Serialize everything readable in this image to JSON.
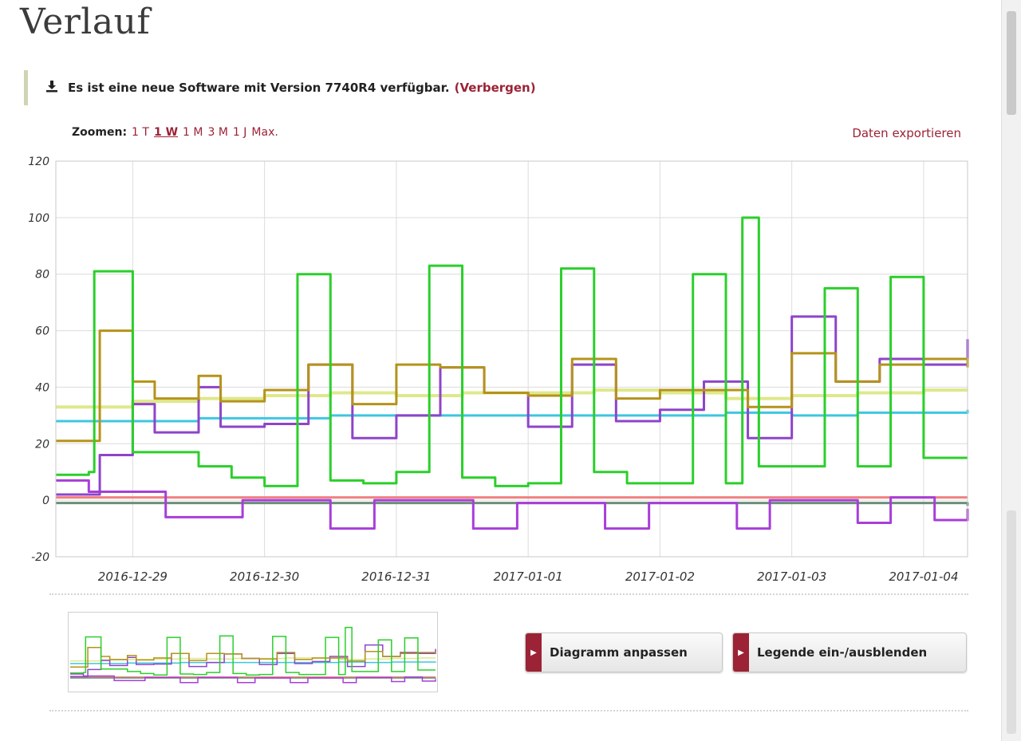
{
  "page": {
    "title": "Verlauf"
  },
  "notice": {
    "icon": "download-icon",
    "text": "Es ist eine neue Software mit Version 7740R4 verfügbar.",
    "hide_label": "(Verbergen)"
  },
  "zoom": {
    "label": "Zoomen:",
    "options": [
      "1 T",
      "1 W",
      "1 M",
      "3 M",
      "1 J",
      "Max."
    ],
    "active": "1 W"
  },
  "export": {
    "label": "Daten exportieren"
  },
  "buttons": {
    "adjust": "Diagramm anpassen",
    "legend": "Legende ein-/ausblenden"
  },
  "chart_data": {
    "type": "line",
    "x_start": "2016-12-28T10:00",
    "x_end": "2017-01-04T08:00",
    "x_ticks": [
      "2016-12-29",
      "2016-12-30",
      "2016-12-31",
      "2017-01-01",
      "2017-01-02",
      "2017-01-03",
      "2017-01-04"
    ],
    "ylim": [
      -20,
      120
    ],
    "y_ticks": [
      -20,
      0,
      20,
      40,
      60,
      80,
      100,
      120
    ],
    "grid": true,
    "legend": "hidden",
    "series": [
      {
        "color": "#dfe88c",
        "x": [
          "2016-12-28T10:00",
          "2016-12-29T00:00",
          "2016-12-29T12:00",
          "2016-12-30T00:00",
          "2016-12-30T12:00",
          "2016-12-31T00:00",
          "2016-12-31T12:00",
          "2017-01-01T00:00",
          "2017-01-01T12:00",
          "2017-01-02T00:00",
          "2017-01-02T12:00",
          "2017-01-03T00:00",
          "2017-01-03T12:00",
          "2017-01-04T00:00",
          "2017-01-04T08:00"
        ],
        "y": [
          33,
          35,
          36,
          37,
          38,
          37,
          38,
          38,
          39,
          38,
          36,
          37,
          38,
          39,
          39
        ]
      },
      {
        "color": "#3ec6e0",
        "x": [
          "2016-12-28T10:00",
          "2016-12-29T00:00",
          "2016-12-29T12:00",
          "2016-12-30T00:00",
          "2016-12-30T12:00",
          "2016-12-31T00:00",
          "2016-12-31T12:00",
          "2017-01-01T00:00",
          "2017-01-01T12:00",
          "2017-01-02T00:00",
          "2017-01-02T12:00",
          "2017-01-03T00:00",
          "2017-01-03T12:00",
          "2017-01-04T00:00",
          "2017-01-04T08:00"
        ],
        "y": [
          28,
          28,
          29,
          29,
          30,
          30,
          30,
          30,
          30,
          30,
          31,
          30,
          31,
          31,
          32
        ]
      },
      {
        "color": "#f08080",
        "x": [
          "2016-12-28T10:00",
          "2017-01-04T08:00"
        ],
        "y": [
          1,
          1
        ]
      },
      {
        "color": "#6a8f7a",
        "x": [
          "2016-12-28T10:00",
          "2016-12-30T00:00",
          "2017-01-01T00:00",
          "2017-01-03T00:00",
          "2017-01-04T08:00"
        ],
        "y": [
          -1,
          -1,
          -1,
          -1,
          -2
        ]
      },
      {
        "color": "#a83ed8",
        "x": [
          "2016-12-28T10:00",
          "2016-12-28T16:00",
          "2016-12-29T06:00",
          "2016-12-29T20:00",
          "2016-12-30T12:00",
          "2016-12-30T20:00",
          "2016-12-31T14:00",
          "2016-12-31T22:00",
          "2017-01-01T14:00",
          "2017-01-01T22:00",
          "2017-01-02T14:00",
          "2017-01-02T20:00",
          "2017-01-03T12:00",
          "2017-01-03T18:00",
          "2017-01-04T02:00",
          "2017-01-04T08:00"
        ],
        "y": [
          7,
          3,
          -6,
          0,
          -10,
          0,
          -10,
          -1,
          -10,
          -1,
          -10,
          0,
          -8,
          1,
          -7,
          -3
        ]
      },
      {
        "color": "#8e44c9",
        "x": [
          "2016-12-28T10:00",
          "2016-12-28T18:00",
          "2016-12-29T00:00",
          "2016-12-29T04:00",
          "2016-12-29T12:00",
          "2016-12-29T16:00",
          "2016-12-30T00:00",
          "2016-12-30T08:00",
          "2016-12-30T16:00",
          "2016-12-31T00:00",
          "2016-12-31T08:00",
          "2016-12-31T16:00",
          "2017-01-01T00:00",
          "2017-01-01T08:00",
          "2017-01-01T16:00",
          "2017-01-02T00:00",
          "2017-01-02T08:00",
          "2017-01-02T16:00",
          "2017-01-03T00:00",
          "2017-01-03T08:00",
          "2017-01-03T16:00",
          "2017-01-04T00:00",
          "2017-01-04T08:00"
        ],
        "y": [
          2,
          16,
          34,
          24,
          40,
          26,
          27,
          48,
          22,
          30,
          47,
          38,
          26,
          48,
          28,
          32,
          42,
          22,
          65,
          42,
          50,
          48,
          57
        ]
      },
      {
        "color": "#b5931a",
        "x": [
          "2016-12-28T10:00",
          "2016-12-28T18:00",
          "2016-12-29T00:00",
          "2016-12-29T04:00",
          "2016-12-29T12:00",
          "2016-12-29T16:00",
          "2016-12-30T00:00",
          "2016-12-30T08:00",
          "2016-12-30T16:00",
          "2016-12-31T00:00",
          "2016-12-31T08:00",
          "2016-12-31T16:00",
          "2017-01-01T00:00",
          "2017-01-01T08:00",
          "2017-01-01T16:00",
          "2017-01-02T00:00",
          "2017-01-02T08:00",
          "2017-01-02T16:00",
          "2017-01-03T00:00",
          "2017-01-03T08:00",
          "2017-01-03T16:00",
          "2017-01-04T00:00",
          "2017-01-04T08:00"
        ],
        "y": [
          21,
          60,
          42,
          36,
          44,
          35,
          39,
          48,
          34,
          48,
          47,
          38,
          37,
          50,
          36,
          39,
          39,
          33,
          52,
          42,
          48,
          50,
          47
        ]
      },
      {
        "color": "#2bcf2b",
        "x": [
          "2016-12-28T10:00",
          "2016-12-28T16:00",
          "2016-12-28T17:00",
          "2016-12-29T00:00",
          "2016-12-29T12:00",
          "2016-12-29T18:00",
          "2016-12-30T00:00",
          "2016-12-30T06:00",
          "2016-12-30T12:00",
          "2016-12-30T18:00",
          "2016-12-31T00:00",
          "2016-12-31T06:00",
          "2016-12-31T12:00",
          "2016-12-31T18:00",
          "2017-01-01T00:00",
          "2017-01-01T06:00",
          "2017-01-01T12:00",
          "2017-01-01T18:00",
          "2017-01-02T00:00",
          "2017-01-02T06:00",
          "2017-01-02T12:00",
          "2017-01-02T15:00",
          "2017-01-02T16:00",
          "2017-01-02T18:00",
          "2017-01-03T00:00",
          "2017-01-03T06:00",
          "2017-01-03T12:00",
          "2017-01-03T18:00",
          "2017-01-04T00:00",
          "2017-01-04T08:00"
        ],
        "y": [
          9,
          10,
          81,
          17,
          12,
          8,
          5,
          80,
          7,
          6,
          10,
          83,
          8,
          5,
          6,
          82,
          10,
          6,
          6,
          80,
          6,
          100,
          100,
          12,
          12,
          75,
          12,
          79,
          15,
          15
        ]
      }
    ]
  }
}
